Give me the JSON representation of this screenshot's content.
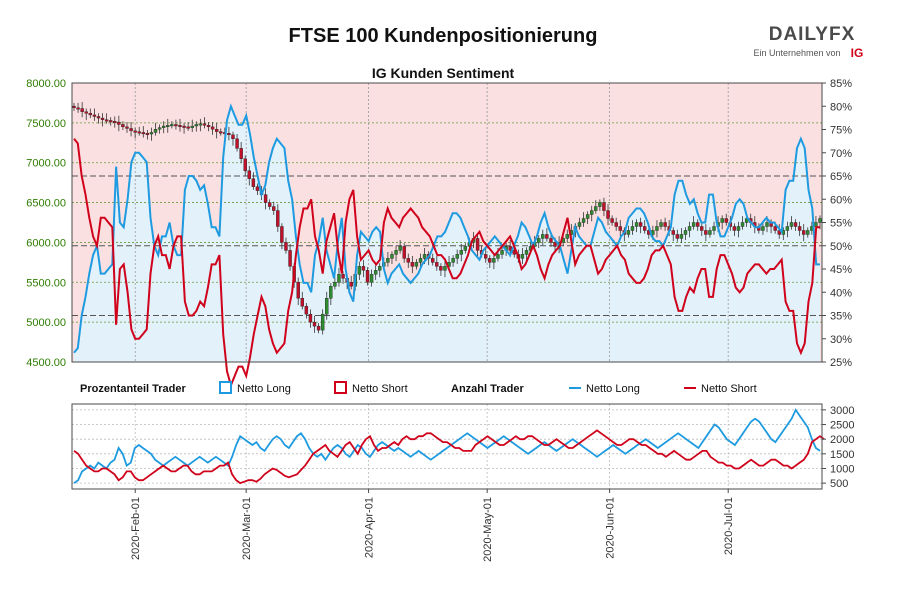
{
  "header": {
    "title": "FTSE 100 Kundenpositionierung",
    "subtitle": "IG Kunden Sentiment",
    "brand_top": "DAILYFX",
    "brand_sub": "Ein Unternehmen von",
    "brand_ig": "IG"
  },
  "legend": {
    "pct_label": "Prozentanteil Trader",
    "pct_long": "Netto Long",
    "pct_short": "Netto Short",
    "count_label": "Anzahl Trader",
    "count_long": "Netto Long",
    "count_short": "Netto Short"
  },
  "colors": {
    "long": "#1e9be0",
    "short": "#d0021b",
    "up_candle": "#2e8b2e",
    "down_candle": "#c0102a",
    "long_fill": "#e3f1fb",
    "short_fill": "#fbe0e2",
    "left_axis_text": "#2e7d00"
  },
  "chart_data": [
    {
      "type": "line",
      "name": "price-sentiment",
      "y_left_ticks": [
        "8000.00",
        "7500.00",
        "7000.00",
        "6500.00",
        "6000.00",
        "5500.00",
        "5000.00",
        "4500.00"
      ],
      "y_left_range": [
        4500,
        8000
      ],
      "y_right_ticks": [
        "85%",
        "80%",
        "75%",
        "70%",
        "65%",
        "60%",
        "55%",
        "50%",
        "45%",
        "40%",
        "35%",
        "30%",
        "25%"
      ],
      "y_right_range": [
        25,
        85
      ],
      "x_ticks": [
        "2020-Feb-01",
        "2020-Mar-01",
        "2020-Apr-01",
        "2020-May-01",
        "2020-Jun-01",
        "2020-Jul-01"
      ],
      "net_long_pct": [
        27,
        28,
        35,
        39,
        44,
        48,
        50,
        44,
        44,
        45,
        46,
        67,
        55,
        54,
        60,
        68,
        70,
        70,
        69,
        68,
        56,
        50,
        48,
        52,
        52,
        55,
        50,
        48,
        48,
        62,
        65,
        65,
        64,
        62,
        63,
        59,
        54,
        54,
        52,
        69,
        77,
        80,
        78,
        76,
        76,
        78,
        74,
        69,
        65,
        61,
        63,
        68,
        71,
        73,
        72,
        71,
        64,
        60,
        52,
        46,
        42,
        42,
        40,
        48,
        51,
        56,
        49,
        46,
        43,
        51,
        56,
        45,
        40,
        38,
        48,
        53,
        52,
        51,
        53,
        54,
        53,
        45,
        42,
        44,
        45,
        46,
        44,
        43,
        42,
        43,
        44,
        46,
        47,
        48,
        50,
        52,
        52,
        53,
        55,
        57,
        57,
        56,
        54,
        52,
        49,
        48,
        47,
        49,
        50,
        51,
        52,
        51,
        50,
        49,
        48,
        50,
        52,
        55,
        54,
        52,
        50,
        52,
        55,
        57,
        54,
        52,
        51,
        50,
        47,
        44,
        49,
        54,
        52,
        51,
        50,
        50,
        53,
        56,
        55,
        53,
        52,
        51,
        50,
        52,
        53,
        56,
        57,
        58,
        58,
        57,
        55,
        52,
        51,
        51,
        50,
        52,
        54,
        61,
        64,
        64,
        61,
        59,
        60,
        57,
        55,
        55,
        61,
        61,
        55,
        52,
        52,
        54,
        56,
        59,
        60,
        59,
        56,
        55,
        54,
        54,
        55,
        56,
        55,
        55,
        54,
        53,
        62,
        64,
        64,
        71,
        73,
        71,
        62,
        58,
        46,
        46
      ],
      "net_short_pct": [
        73,
        72,
        65,
        61,
        56,
        52,
        50,
        56,
        56,
        55,
        54,
        33,
        45,
        46,
        40,
        32,
        30,
        30,
        31,
        32,
        44,
        50,
        52,
        48,
        48,
        45,
        50,
        52,
        52,
        38,
        35,
        35,
        36,
        38,
        37,
        41,
        46,
        46,
        48,
        31,
        23,
        20,
        22,
        24,
        24,
        22,
        26,
        31,
        35,
        39,
        37,
        32,
        29,
        27,
        28,
        29,
        36,
        40,
        48,
        54,
        58,
        58,
        60,
        52,
        49,
        44,
        51,
        54,
        57,
        49,
        44,
        55,
        60,
        62,
        52,
        47,
        48,
        49,
        47,
        46,
        47,
        55,
        58,
        56,
        55,
        54,
        56,
        57,
        58,
        57,
        56,
        54,
        53,
        52,
        50,
        48,
        48,
        47,
        45,
        43,
        43,
        44,
        46,
        48,
        51,
        52,
        53,
        51,
        50,
        49,
        48,
        49,
        50,
        51,
        52,
        50,
        48,
        45,
        46,
        48,
        50,
        48,
        45,
        43,
        46,
        48,
        49,
        50,
        53,
        56,
        51,
        46,
        48,
        49,
        50,
        50,
        47,
        44,
        45,
        47,
        48,
        49,
        50,
        48,
        47,
        44,
        43,
        42,
        42,
        43,
        45,
        48,
        49,
        49,
        50,
        48,
        46,
        39,
        36,
        36,
        39,
        41,
        40,
        43,
        45,
        45,
        39,
        39,
        45,
        48,
        48,
        46,
        44,
        41,
        40,
        41,
        44,
        45,
        46,
        46,
        45,
        44,
        45,
        45,
        46,
        47,
        38,
        36,
        36,
        29,
        27,
        29,
        38,
        42,
        54,
        54
      ],
      "candles_close": [
        7690,
        7680,
        7640,
        7620,
        7600,
        7580,
        7560,
        7540,
        7530,
        7520,
        7510,
        7480,
        7450,
        7430,
        7400,
        7390,
        7380,
        7370,
        7360,
        7380,
        7420,
        7440,
        7460,
        7470,
        7480,
        7470,
        7460,
        7450,
        7440,
        7460,
        7480,
        7490,
        7470,
        7450,
        7420,
        7390,
        7380,
        7370,
        7350,
        7300,
        7180,
        7050,
        6900,
        6800,
        6700,
        6650,
        6600,
        6500,
        6450,
        6400,
        6200,
        6000,
        5900,
        5700,
        5500,
        5300,
        5200,
        5100,
        5000,
        4950,
        4900,
        5100,
        5300,
        5450,
        5500,
        5600,
        5550,
        5500,
        5450,
        5600,
        5700,
        5650,
        5500,
        5600,
        5650,
        5700,
        5750,
        5800,
        5850,
        5900,
        5950,
        5800,
        5750,
        5700,
        5750,
        5800,
        5850,
        5800,
        5750,
        5700,
        5650,
        5700,
        5750,
        5800,
        5850,
        5900,
        5950,
        6000,
        6050,
        5900,
        5850,
        5800,
        5750,
        5800,
        5850,
        5900,
        5950,
        5900,
        5850,
        5800,
        5850,
        5900,
        5950,
        6000,
        6050,
        6100,
        6050,
        6000,
        5950,
        6000,
        6050,
        6100,
        6150,
        6200,
        6250,
        6300,
        6350,
        6400,
        6450,
        6500,
        6400,
        6300,
        6250,
        6200,
        6150,
        6100,
        6150,
        6200,
        6250,
        6200,
        6150,
        6100,
        6150,
        6200,
        6250,
        6200,
        6150,
        6100,
        6050,
        6100,
        6150,
        6200,
        6250,
        6200,
        6150,
        6100,
        6150,
        6200,
        6250,
        6300,
        6250,
        6200,
        6150,
        6200,
        6250,
        6300,
        6250,
        6200,
        6150,
        6200,
        6250,
        6200,
        6150,
        6100,
        6150,
        6200,
        6250,
        6200,
        6150,
        6100,
        6150,
        6200,
        6250,
        6300
      ]
    },
    {
      "type": "line",
      "name": "trader-counts",
      "y_ticks": [
        "3000",
        "2500",
        "2000",
        "1500",
        "1000",
        "500"
      ],
      "y_range": [
        300,
        3200
      ],
      "net_long": [
        500,
        600,
        900,
        1000,
        1100,
        1000,
        1200,
        1100,
        1000,
        1200,
        1300,
        1700,
        1500,
        1100,
        1200,
        1700,
        1800,
        1700,
        1600,
        1500,
        1300,
        1200,
        1100,
        1200,
        1300,
        1400,
        1300,
        1200,
        1100,
        1200,
        1300,
        1400,
        1300,
        1200,
        1300,
        1400,
        1300,
        1200,
        1100,
        1400,
        1800,
        2100,
        2000,
        1900,
        1800,
        1900,
        1700,
        1600,
        1800,
        2000,
        2100,
        2000,
        1800,
        1700,
        1900,
        2100,
        2200,
        2000,
        1700,
        1500,
        1400,
        1500,
        1300,
        1500,
        1700,
        1800,
        1700,
        1500,
        1400,
        1600,
        1800,
        1700,
        1500,
        1400,
        1600,
        1800,
        1900,
        1800,
        1700,
        1600,
        1700,
        1600,
        1500,
        1400,
        1500,
        1600,
        1500,
        1400,
        1300,
        1400,
        1500,
        1600,
        1700,
        1800,
        1900,
        2000,
        2100,
        2200,
        2100,
        2000,
        1900,
        1800,
        1700,
        1800,
        1900,
        2000,
        2100,
        2000,
        1900,
        1800,
        1700,
        1600,
        1500,
        1600,
        1700,
        1800,
        1900,
        1800,
        1700,
        1600,
        1700,
        1800,
        1900,
        2000,
        1900,
        1800,
        1700,
        1600,
        1500,
        1400,
        1500,
        1600,
        1700,
        1800,
        1700,
        1600,
        1500,
        1600,
        1700,
        1800,
        1900,
        2000,
        1900,
        1800,
        1700,
        1800,
        1900,
        2000,
        2100,
        2200,
        2100,
        2000,
        1900,
        1800,
        1700,
        1900,
        2100,
        2300,
        2500,
        2400,
        2200,
        2000,
        1900,
        1800,
        2000,
        2200,
        2400,
        2600,
        2700,
        2600,
        2400,
        2200,
        2000,
        1900,
        2100,
        2300,
        2500,
        2700,
        3000,
        2800,
        2600,
        2400,
        2000,
        1700,
        1600
      ],
      "net_short": [
        1600,
        1500,
        1300,
        1100,
        1000,
        900,
        900,
        1000,
        1000,
        900,
        800,
        600,
        700,
        900,
        900,
        700,
        600,
        600,
        700,
        800,
        900,
        1000,
        1100,
        1000,
        900,
        900,
        1000,
        1100,
        1100,
        900,
        800,
        800,
        900,
        900,
        900,
        1000,
        1100,
        1100,
        1200,
        800,
        600,
        500,
        550,
        600,
        600,
        550,
        650,
        800,
        900,
        1000,
        950,
        850,
        750,
        700,
        750,
        800,
        950,
        1100,
        1300,
        1500,
        1600,
        1700,
        1800,
        1600,
        1500,
        1400,
        1600,
        1800,
        1900,
        1700,
        1500,
        1800,
        2000,
        2100,
        1800,
        1600,
        1700,
        1700,
        1800,
        1900,
        1800,
        2000,
        2100,
        2000,
        2000,
        2100,
        2100,
        2200,
        2200,
        2100,
        2000,
        1900,
        1900,
        1800,
        1700,
        1700,
        1600,
        1600,
        1600,
        1800,
        1900,
        2000,
        2100,
        2000,
        1900,
        1800,
        1800,
        1900,
        2000,
        2100,
        2000,
        2000,
        2100,
        2100,
        2000,
        1900,
        1800,
        1800,
        1900,
        2000,
        1900,
        1800,
        1700,
        1700,
        1800,
        1900,
        2000,
        2100,
        2200,
        2300,
        2200,
        2100,
        2000,
        1900,
        1800,
        1800,
        1900,
        2000,
        2000,
        1900,
        1800,
        1800,
        1700,
        1600,
        1500,
        1500,
        1400,
        1500,
        1600,
        1500,
        1400,
        1300,
        1300,
        1400,
        1500,
        1600,
        1600,
        1400,
        1300,
        1200,
        1200,
        1100,
        1100,
        1000,
        1000,
        1100,
        1200,
        1300,
        1200,
        1100,
        1100,
        1200,
        1300,
        1300,
        1200,
        1100,
        1100,
        1000,
        1100,
        1200,
        1300,
        1500,
        1900,
        2000,
        2100,
        2000
      ]
    }
  ]
}
